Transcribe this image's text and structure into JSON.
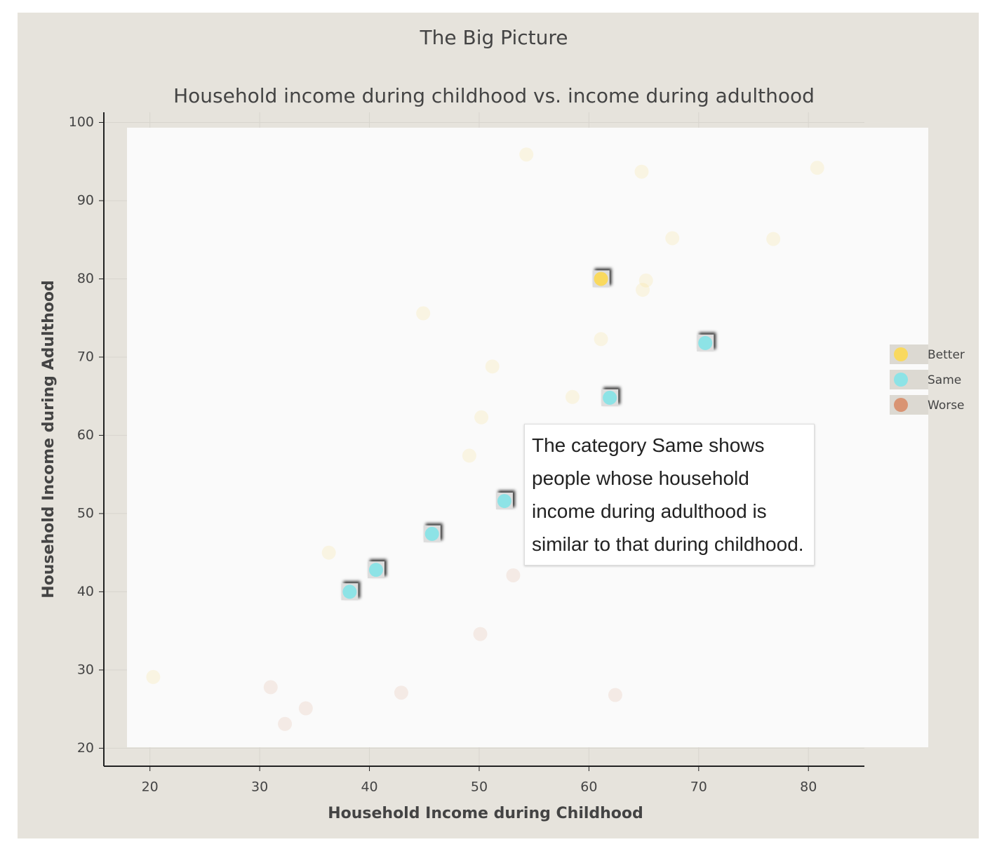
{
  "chart_data": {
    "type": "scatter",
    "title": "The Big Picture",
    "subtitle": "Household income during childhood vs. income during adulthood",
    "x_label": "Household Income during Childhood",
    "y_label": "Household Income during Adulthood",
    "xlim": [
      15.8,
      85.1
    ],
    "ylim": [
      17.7,
      101.3
    ],
    "xticks": [
      20,
      30,
      40,
      50,
      60,
      70,
      80
    ],
    "yticks": [
      20,
      30,
      40,
      50,
      60,
      70,
      80,
      90,
      100
    ],
    "grid": true,
    "legend": "right",
    "series": [
      {
        "name": "Better",
        "color": "#f9d95e",
        "x": [
          61.1,
          54.3,
          64.8,
          80.8,
          67.6,
          76.8,
          65.2,
          64.9,
          44.9,
          61.1,
          51.2,
          58.5,
          50.2,
          49.1,
          36.3,
          20.3
        ],
        "y": [
          80,
          95.9,
          93.7,
          94.2,
          85.2,
          85.1,
          79.8,
          78.6,
          75.6,
          72.3,
          68.8,
          64.9,
          62.3,
          57.4,
          45,
          29.1
        ],
        "highlight": [
          true,
          false,
          false,
          false,
          false,
          false,
          false,
          false,
          false,
          false,
          false,
          false,
          false,
          false,
          false,
          false
        ]
      },
      {
        "name": "Same",
        "color": "#8de3e6",
        "x": [
          38.2,
          40.6,
          45.7,
          52.3,
          61.9,
          70.6
        ],
        "y": [
          40,
          42.8,
          47.4,
          51.6,
          64.8,
          71.8
        ],
        "highlight": [
          true,
          true,
          true,
          true,
          true,
          true
        ]
      },
      {
        "name": "Worse",
        "color": "#d99473",
        "x": [
          53.1,
          50.1,
          31.0,
          32.3,
          34.2,
          42.9,
          62.4
        ],
        "y": [
          42.1,
          34.6,
          27.8,
          23.1,
          25.1,
          27.1,
          26.8
        ],
        "highlight": [
          false,
          false,
          false,
          false,
          false,
          false,
          false
        ]
      }
    ],
    "annotation": "The category Same shows people whose household income during adulthood is similar to that during childhood."
  }
}
